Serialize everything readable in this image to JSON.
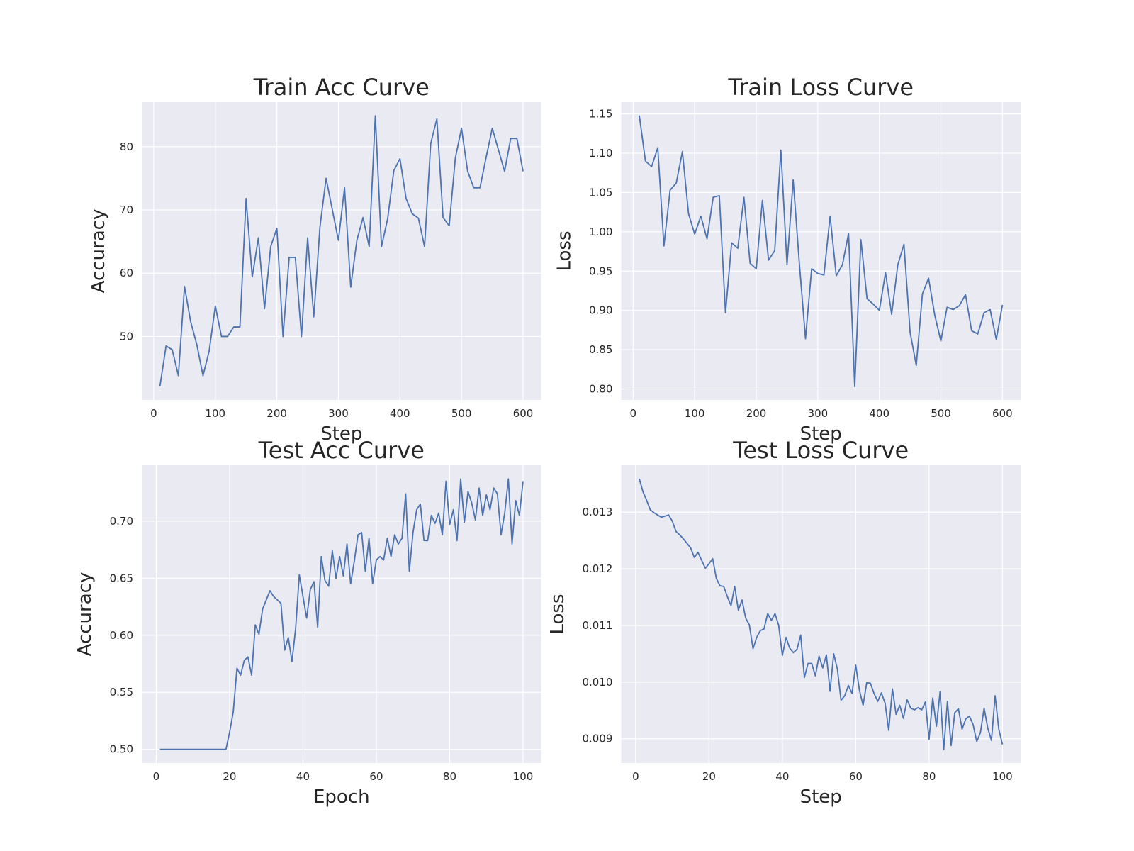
{
  "chart_data": [
    {
      "type": "line",
      "title": "Train Acc Curve",
      "xlabel": "Step",
      "ylabel": "Accuracy",
      "color": "#4c72b0",
      "grid": true,
      "x": [
        10,
        20,
        30,
        40,
        50,
        60,
        70,
        80,
        90,
        100,
        110,
        120,
        130,
        140,
        150,
        160,
        170,
        180,
        190,
        200,
        210,
        220,
        230,
        240,
        250,
        260,
        270,
        280,
        290,
        300,
        310,
        320,
        330,
        340,
        350,
        360,
        370,
        380,
        390,
        400,
        410,
        420,
        430,
        440,
        450,
        460,
        470,
        480,
        490,
        500,
        510,
        520,
        530,
        540,
        550,
        560,
        570,
        580,
        590,
        600
      ],
      "values": [
        42.1,
        48.5,
        47.9,
        43.8,
        57.9,
        52.3,
        48.7,
        43.8,
        47.7,
        54.8,
        50.0,
        50.0,
        51.5,
        51.5,
        71.8,
        59.4,
        65.6,
        54.4,
        64.2,
        67.1,
        50.0,
        62.5,
        62.5,
        50.0,
        65.6,
        53.1,
        67.3,
        75.0,
        70.1,
        65.2,
        73.5,
        57.8,
        65.2,
        68.8,
        64.2,
        84.9,
        64.2,
        68.6,
        76.2,
        78.1,
        71.8,
        69.4,
        68.7,
        64.2,
        80.5,
        84.4,
        68.8,
        67.5,
        78.2,
        82.9,
        76.1,
        73.5,
        73.5,
        78.3,
        82.9,
        79.5,
        76.1,
        81.3,
        81.3,
        76.1
      ],
      "xlim": [
        -19.5,
        629.5
      ],
      "xticks": [
        0,
        100,
        200,
        300,
        400,
        500,
        600
      ],
      "ylim": [
        39.96,
        87.04
      ],
      "yticks": [
        50,
        60,
        70,
        80
      ]
    },
    {
      "type": "line",
      "title": "Train Loss Curve",
      "xlabel": "Step",
      "ylabel": "Loss",
      "color": "#4c72b0",
      "grid": true,
      "x": [
        10,
        20,
        30,
        40,
        50,
        60,
        70,
        80,
        90,
        100,
        110,
        120,
        130,
        140,
        150,
        160,
        170,
        180,
        190,
        200,
        210,
        220,
        230,
        240,
        250,
        260,
        270,
        280,
        290,
        300,
        310,
        320,
        330,
        340,
        350,
        360,
        370,
        380,
        390,
        400,
        410,
        420,
        430,
        440,
        450,
        460,
        470,
        480,
        490,
        500,
        510,
        520,
        530,
        540,
        550,
        560,
        570,
        580,
        590,
        600
      ],
      "values": [
        1.148,
        1.09,
        1.083,
        1.107,
        0.982,
        1.053,
        1.062,
        1.102,
        1.023,
        0.997,
        1.02,
        0.991,
        1.044,
        1.046,
        0.897,
        0.986,
        0.979,
        1.044,
        0.96,
        0.953,
        1.04,
        0.964,
        0.976,
        1.104,
        0.958,
        1.066,
        0.96,
        0.864,
        0.953,
        0.947,
        0.945,
        1.02,
        0.944,
        0.958,
        0.998,
        0.803,
        0.99,
        0.915,
        0.908,
        0.9,
        0.948,
        0.895,
        0.958,
        0.984,
        0.872,
        0.83,
        0.921,
        0.941,
        0.894,
        0.861,
        0.904,
        0.901,
        0.906,
        0.92,
        0.874,
        0.87,
        0.897,
        0.901,
        0.863,
        0.907
      ],
      "xlim": [
        -19.5,
        629.5
      ],
      "xticks": [
        0,
        100,
        200,
        300,
        400,
        500,
        600
      ],
      "ylim": [
        0.786,
        1.165
      ],
      "yticks": [
        {
          "value": 0.8,
          "label": "0.80"
        },
        0.85,
        {
          "value": 0.9,
          "label": "0.90"
        },
        0.95,
        {
          "value": 1.0,
          "label": "1.00"
        },
        1.05,
        {
          "value": 1.1,
          "label": "1.10"
        },
        1.15
      ]
    },
    {
      "type": "line",
      "title": "Test Acc Curve",
      "xlabel": "Epoch",
      "ylabel": "Accuracy",
      "color": "#4c72b0",
      "grid": true,
      "x": [
        1,
        2,
        3,
        4,
        5,
        6,
        7,
        8,
        9,
        10,
        11,
        12,
        13,
        14,
        15,
        16,
        17,
        18,
        19,
        20,
        21,
        22,
        23,
        24,
        25,
        26,
        27,
        28,
        29,
        30,
        31,
        32,
        33,
        34,
        35,
        36,
        37,
        38,
        39,
        40,
        41,
        42,
        43,
        44,
        45,
        46,
        47,
        48,
        49,
        50,
        51,
        52,
        53,
        54,
        55,
        56,
        57,
        58,
        59,
        60,
        61,
        62,
        63,
        64,
        65,
        66,
        67,
        68,
        69,
        70,
        71,
        72,
        73,
        74,
        75,
        76,
        77,
        78,
        79,
        80,
        81,
        82,
        83,
        84,
        85,
        86,
        87,
        88,
        89,
        90,
        91,
        92,
        93,
        94,
        95,
        96,
        97,
        98,
        99,
        100
      ],
      "values": [
        0.5,
        0.5,
        0.5,
        0.5,
        0.5,
        0.5,
        0.5,
        0.5,
        0.5,
        0.5,
        0.5,
        0.5,
        0.5,
        0.5,
        0.5,
        0.5,
        0.5,
        0.5,
        0.5,
        0.515,
        0.533,
        0.571,
        0.565,
        0.578,
        0.581,
        0.565,
        0.609,
        0.601,
        0.623,
        0.631,
        0.639,
        0.634,
        0.631,
        0.628,
        0.587,
        0.598,
        0.577,
        0.606,
        0.653,
        0.634,
        0.615,
        0.64,
        0.647,
        0.607,
        0.669,
        0.648,
        0.643,
        0.674,
        0.65,
        0.669,
        0.652,
        0.68,
        0.645,
        0.665,
        0.688,
        0.69,
        0.656,
        0.685,
        0.645,
        0.666,
        0.669,
        0.666,
        0.685,
        0.669,
        0.688,
        0.68,
        0.685,
        0.724,
        0.656,
        0.69,
        0.71,
        0.715,
        0.683,
        0.683,
        0.705,
        0.698,
        0.707,
        0.688,
        0.735,
        0.697,
        0.71,
        0.683,
        0.737,
        0.699,
        0.726,
        0.716,
        0.701,
        0.729,
        0.705,
        0.723,
        0.71,
        0.729,
        0.724,
        0.688,
        0.707,
        0.737,
        0.68,
        0.718,
        0.705,
        0.735
      ],
      "xlim": [
        -3.95,
        104.95
      ],
      "xticks": [
        0,
        20,
        40,
        60,
        80,
        100
      ],
      "ylim": [
        0.488,
        0.749
      ],
      "yticks": [
        {
          "value": 0.5,
          "label": "0.50"
        },
        0.55,
        {
          "value": 0.6,
          "label": "0.60"
        },
        0.65,
        {
          "value": 0.7,
          "label": "0.70"
        }
      ]
    },
    {
      "type": "line",
      "title": "Test Loss Curve",
      "xlabel": "Step",
      "ylabel": "Loss",
      "color": "#4c72b0",
      "grid": true,
      "x": [
        1,
        2,
        3,
        4,
        5,
        6,
        7,
        8,
        9,
        10,
        11,
        12,
        13,
        14,
        15,
        16,
        17,
        18,
        19,
        20,
        21,
        22,
        23,
        24,
        25,
        26,
        27,
        28,
        29,
        30,
        31,
        32,
        33,
        34,
        35,
        36,
        37,
        38,
        39,
        40,
        41,
        42,
        43,
        44,
        45,
        46,
        47,
        48,
        49,
        50,
        51,
        52,
        53,
        54,
        55,
        56,
        57,
        58,
        59,
        60,
        61,
        62,
        63,
        64,
        65,
        66,
        67,
        68,
        69,
        70,
        71,
        72,
        73,
        74,
        75,
        76,
        77,
        78,
        79,
        80,
        81,
        82,
        83,
        84,
        85,
        86,
        87,
        88,
        89,
        90,
        91,
        92,
        93,
        94,
        95,
        96,
        97,
        98,
        99,
        100
      ],
      "values": [
        0.01359,
        0.01336,
        0.01321,
        0.01304,
        0.01299,
        0.01295,
        0.01291,
        0.01293,
        0.01295,
        0.01284,
        0.01266,
        0.0126,
        0.01253,
        0.01245,
        0.01237,
        0.0122,
        0.01229,
        0.01215,
        0.01201,
        0.01209,
        0.01218,
        0.01183,
        0.0117,
        0.01169,
        0.01151,
        0.01135,
        0.01169,
        0.01127,
        0.01145,
        0.01113,
        0.01101,
        0.01059,
        0.01079,
        0.01091,
        0.01094,
        0.01121,
        0.01109,
        0.01121,
        0.011,
        0.01047,
        0.01079,
        0.0106,
        0.01052,
        0.01058,
        0.01083,
        0.01008,
        0.01033,
        0.01033,
        0.01011,
        0.01046,
        0.01025,
        0.01048,
        0.00984,
        0.0105,
        0.01023,
        0.00968,
        0.00976,
        0.00994,
        0.0098,
        0.0103,
        0.00986,
        0.00959,
        0.00999,
        0.00998,
        0.0098,
        0.00966,
        0.00981,
        0.00963,
        0.00915,
        0.00988,
        0.00943,
        0.00959,
        0.00936,
        0.00969,
        0.00954,
        0.00951,
        0.00955,
        0.00951,
        0.00965,
        0.00899,
        0.00972,
        0.00922,
        0.00983,
        0.00881,
        0.00966,
        0.00888,
        0.00946,
        0.00953,
        0.00917,
        0.00935,
        0.0094,
        0.00925,
        0.00895,
        0.00911,
        0.00954,
        0.00919,
        0.00897,
        0.00976,
        0.00917,
        0.0089
      ],
      "xlim": [
        -3.95,
        104.95
      ],
      "xticks": [
        0,
        20,
        40,
        60,
        80,
        100
      ],
      "ylim": [
        0.008571,
        0.013829
      ],
      "yticks": [
        0.009,
        {
          "value": 0.01,
          "label": "0.010"
        },
        0.011,
        0.012,
        0.013
      ]
    }
  ]
}
